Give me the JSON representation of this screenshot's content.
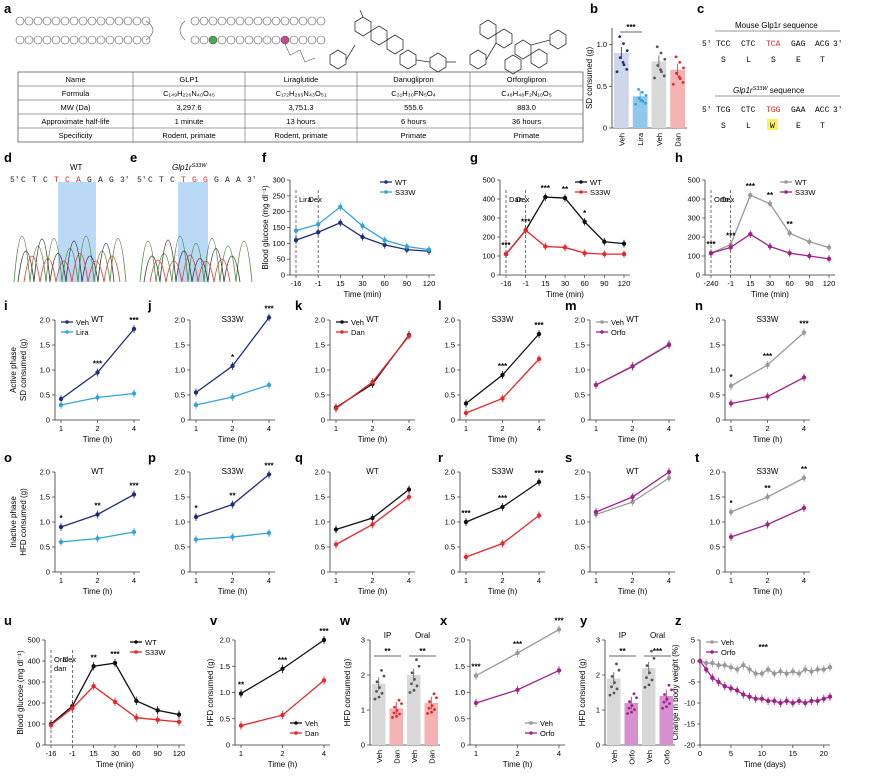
{
  "colors": {
    "wt": "#1f2e7a",
    "lira": "#34a3d8",
    "dan": "#e8262b",
    "danlight": "#f29a98",
    "orfo": "#a0218c",
    "veh_gray": "#999999",
    "black": "#111111",
    "bar_lira": "#8fc8ec",
    "bar_dan": "#f4b2b2",
    "bar_veh_b": "#cfd6ea",
    "bar_veh_gray": "#d8d8d8",
    "bar_orfo": "#d68fcf",
    "seq_highlight": "#a9d0f5",
    "w_highlight": "#ffef5a"
  },
  "panel_letters": {
    "a": "a",
    "b": "b",
    "c": "c",
    "d": "d",
    "e": "e",
    "f": "f",
    "g": "g",
    "h": "h",
    "i": "i",
    "j": "j",
    "k": "k",
    "l": "l",
    "m": "m",
    "n": "n",
    "o": "o",
    "p": "p",
    "q": "q",
    "r": "r",
    "s": "s",
    "t": "t",
    "u": "u",
    "v": "v",
    "w": "w",
    "x": "x",
    "y": "y",
    "z": "z"
  },
  "table": {
    "headers": [
      "Name",
      "GLP1",
      "Liraglutide",
      "Danuglipron",
      "Orforglipron"
    ],
    "rows": [
      [
        "Formula",
        "C₁₄₉H₂₂₆N₄₀O₄₅",
        "C₁₇₂H₂₆₅N₄₃O₅₁",
        "C₃₁H₃₀FN₅O₄",
        "C₄₈H₄₈F₂N₁₀O₅"
      ],
      [
        "MW (Da)",
        "3,297.6",
        "3,751.3",
        "555.6",
        "883.0"
      ],
      [
        "Approximate half-life",
        "1 minute",
        "13 hours",
        "6 hours",
        "36 hours"
      ],
      [
        "Specificity",
        "Rodent, primate",
        "Rodent, primate",
        "Primate",
        "Primate"
      ]
    ]
  },
  "panel_b": {
    "ylabel": "SD consumed (g)",
    "yticks": [
      "0",
      "0.5",
      "1.0"
    ],
    "categories": [
      "Veh",
      "Lira",
      "Veh",
      "Dan"
    ],
    "values": [
      0.9,
      0.38,
      0.8,
      0.7
    ],
    "stars": "***"
  },
  "panel_c": {
    "title1": "Mouse Glp1r sequence",
    "seq1_prefix": "5′",
    "seq1": [
      "TCC",
      "CTC",
      "TCA",
      "GAG",
      "ACG"
    ],
    "seq1_suffix": "3′",
    "aa1": [
      "S",
      "L",
      "S",
      "E",
      "T"
    ],
    "title2_pre": "Glp1r",
    "title2_sup": "S33W",
    "title2_post": " sequence",
    "seq2_prefix": "5′",
    "seq2": [
      "TCG",
      "CTC",
      "TGG",
      "GAA",
      "ACC"
    ],
    "seq2_suffix": "3′",
    "aa2": [
      "S",
      "L",
      "W",
      "E",
      "T"
    ]
  },
  "panel_d": {
    "title": "WT",
    "seq": [
      "5′",
      "C",
      "T",
      "C",
      "T",
      "C",
      "A",
      "G",
      "A",
      "G",
      "3′"
    ]
  },
  "panel_e": {
    "title_pre": "Glp1r",
    "title_sup": "S33W",
    "seq": [
      "5′",
      "C",
      "T",
      "C",
      "T",
      "G",
      "G",
      "G",
      "A",
      "A",
      "3′"
    ]
  },
  "glucose_ylabel": "Blood glucose (mg dl⁻¹)",
  "time_min_label": "Time (min)",
  "time_h_label": "Time (h)",
  "sd_label": "Active phase\nSD consumed (g)",
  "hfd_label": "Inactive phase\nHFD consumed (g)",
  "hfd_label2": "HFD consumed (g)",
  "chart_data": [
    {
      "id": "f",
      "type": "line",
      "ylabel": "Blood glucose (mg dl⁻¹)",
      "xlabel": "Time (min)",
      "x": [
        "-16",
        "-1",
        "15",
        "30",
        "60",
        "90",
        "120"
      ],
      "ylim": [
        0,
        300
      ],
      "yticks": [
        0,
        50,
        100,
        150,
        200,
        250,
        300
      ],
      "annotations": [
        "Lira",
        "Dex"
      ],
      "series": [
        {
          "name": "WT",
          "color": "#1f2e7a",
          "values": [
            110,
            135,
            165,
            120,
            95,
            80,
            75
          ]
        },
        {
          "name": "S33W",
          "color": "#34a3d8",
          "values": [
            140,
            160,
            215,
            155,
            110,
            90,
            80
          ]
        }
      ]
    },
    {
      "id": "g",
      "type": "line",
      "ylabel": "",
      "xlabel": "Time (min)",
      "x": [
        "-16",
        "-1",
        "15",
        "30",
        "60",
        "90",
        "120"
      ],
      "ylim": [
        0,
        500
      ],
      "yticks": [
        0,
        100,
        200,
        300,
        400,
        500
      ],
      "annotations": [
        "Dan",
        "Dex"
      ],
      "stars": [
        "***",
        "***",
        "***",
        "**",
        "*"
      ],
      "series": [
        {
          "name": "WT",
          "color": "#111111",
          "values": [
            110,
            235,
            410,
            405,
            280,
            175,
            165
          ]
        },
        {
          "name": "S33W",
          "color": "#e8262b",
          "values": [
            110,
            235,
            150,
            145,
            115,
            110,
            110
          ]
        }
      ]
    },
    {
      "id": "h",
      "type": "line",
      "ylabel": "",
      "xlabel": "Time (min)",
      "x": [
        "-240",
        "-1",
        "15",
        "30",
        "60",
        "90",
        "120"
      ],
      "ylim": [
        0,
        500
      ],
      "yticks": [
        0,
        100,
        200,
        300,
        400,
        500
      ],
      "annotations": [
        "Orfo",
        "Dex"
      ],
      "stars": [
        "***",
        "***",
        "***",
        "**",
        "**"
      ],
      "series": [
        {
          "name": "WT",
          "color": "#999999",
          "values": [
            115,
            160,
            420,
            375,
            220,
            175,
            145
          ]
        },
        {
          "name": "S33W",
          "color": "#a0218c",
          "values": [
            115,
            145,
            215,
            150,
            115,
            100,
            85
          ]
        }
      ]
    },
    {
      "id": "i",
      "type": "line",
      "title": "WT",
      "x": [
        "1",
        "2",
        "4"
      ],
      "ylim": [
        0,
        2.0
      ],
      "yticks": [
        "0",
        "0.5",
        "1.0",
        "1.5",
        "2.0"
      ],
      "stars": [
        "",
        "***",
        "***"
      ],
      "legend": [
        "Veh",
        "Lira"
      ],
      "series": [
        {
          "name": "Veh",
          "color": "#1f2e7a",
          "values": [
            0.42,
            0.95,
            1.82
          ]
        },
        {
          "name": "Lira",
          "color": "#34a3d8",
          "values": [
            0.3,
            0.45,
            0.53
          ]
        }
      ]
    },
    {
      "id": "j",
      "type": "line",
      "title": "S33W",
      "x": [
        "1",
        "2",
        "4"
      ],
      "ylim": [
        0,
        2.0
      ],
      "yticks": [
        "0",
        "0.5",
        "1.0",
        "1.5",
        "2.0"
      ],
      "stars": [
        "",
        "*",
        "***"
      ],
      "series": [
        {
          "name": "Veh",
          "color": "#1f2e7a",
          "values": [
            0.55,
            1.08,
            2.05
          ]
        },
        {
          "name": "Lira",
          "color": "#34a3d8",
          "values": [
            0.3,
            0.46,
            0.7
          ]
        }
      ]
    },
    {
      "id": "k",
      "type": "line",
      "title": "WT",
      "x": [
        "1",
        "2",
        "4"
      ],
      "ylim": [
        0,
        2.0
      ],
      "yticks": [
        "0",
        "0.5",
        "1.0",
        "1.5",
        "2.0"
      ],
      "stars": [
        "",
        "",
        ""
      ],
      "legend": [
        "Veh",
        "Dan"
      ],
      "series": [
        {
          "name": "Veh",
          "color": "#111111",
          "values": [
            0.25,
            0.72,
            1.7
          ]
        },
        {
          "name": "Dan",
          "color": "#e8262b",
          "values": [
            0.23,
            0.76,
            1.68
          ]
        }
      ]
    },
    {
      "id": "l",
      "type": "line",
      "title": "S33W",
      "x": [
        "1",
        "2",
        "4"
      ],
      "ylim": [
        0,
        2.0
      ],
      "yticks": [
        "0",
        "0.5",
        "1.0",
        "1.5",
        "2.0"
      ],
      "stars": [
        "",
        "***",
        "***"
      ],
      "series": [
        {
          "name": "Veh",
          "color": "#111111",
          "values": [
            0.33,
            0.9,
            1.72
          ]
        },
        {
          "name": "Dan",
          "color": "#e8262b",
          "values": [
            0.14,
            0.43,
            1.22
          ]
        }
      ]
    },
    {
      "id": "m",
      "type": "line",
      "title": "WT",
      "x": [
        "1",
        "2",
        "4"
      ],
      "ylim": [
        0,
        2.0
      ],
      "yticks": [
        "0",
        "0.5",
        "1.0",
        "1.5",
        "2.0"
      ],
      "stars": [
        "",
        "",
        ""
      ],
      "legend": [
        "Veh",
        "Orfo"
      ],
      "series": [
        {
          "name": "Veh",
          "color": "#999999",
          "values": [
            0.7,
            1.08,
            1.52
          ]
        },
        {
          "name": "Orfo",
          "color": "#a0218c",
          "values": [
            0.7,
            1.07,
            1.5
          ]
        }
      ]
    },
    {
      "id": "n",
      "type": "line",
      "title": "S33W",
      "x": [
        "1",
        "2",
        "4"
      ],
      "ylim": [
        0,
        2.0
      ],
      "yticks": [
        "0",
        "0.5",
        "1.0",
        "1.5",
        "2.0"
      ],
      "stars": [
        "*",
        "***",
        "***"
      ],
      "series": [
        {
          "name": "Veh",
          "color": "#999999",
          "values": [
            0.68,
            1.1,
            1.75
          ]
        },
        {
          "name": "Orfo",
          "color": "#a0218c",
          "values": [
            0.33,
            0.47,
            0.85
          ]
        }
      ]
    },
    {
      "id": "o",
      "type": "line",
      "title": "WT",
      "x": [
        "1",
        "2",
        "4"
      ],
      "ylim": [
        0,
        2.0
      ],
      "yticks": [
        "0",
        "0.5",
        "1.0",
        "1.5",
        "2.0"
      ],
      "stars": [
        "*",
        "**",
        "***"
      ],
      "series": [
        {
          "name": "Veh",
          "color": "#1f2e7a",
          "values": [
            0.9,
            1.15,
            1.55
          ]
        },
        {
          "name": "Lira",
          "color": "#34a3d8",
          "values": [
            0.6,
            0.67,
            0.8
          ]
        }
      ]
    },
    {
      "id": "p",
      "type": "line",
      "title": "S33W",
      "x": [
        "1",
        "2",
        "4"
      ],
      "ylim": [
        0,
        2.0
      ],
      "yticks": [
        "0",
        "0.5",
        "1.0",
        "1.5",
        "2.0"
      ],
      "stars": [
        "*",
        "**",
        "***"
      ],
      "series": [
        {
          "name": "Veh",
          "color": "#1f2e7a",
          "values": [
            1.1,
            1.35,
            1.95
          ]
        },
        {
          "name": "Lira",
          "color": "#34a3d8",
          "values": [
            0.65,
            0.7,
            0.78
          ]
        }
      ]
    },
    {
      "id": "q",
      "type": "line",
      "title": "WT",
      "x": [
        "1",
        "2",
        "4"
      ],
      "ylim": [
        0,
        2.0
      ],
      "yticks": [
        "0",
        "0.5",
        "1.0",
        "1.5",
        "2.0"
      ],
      "stars": [
        "",
        "",
        ""
      ],
      "series": [
        {
          "name": "Veh",
          "color": "#111111",
          "values": [
            0.85,
            1.08,
            1.65
          ]
        },
        {
          "name": "Dan",
          "color": "#e8262b",
          "values": [
            0.55,
            0.95,
            1.5
          ]
        }
      ]
    },
    {
      "id": "r",
      "type": "line",
      "title": "S33W",
      "x": [
        "1",
        "2",
        "4"
      ],
      "ylim": [
        0,
        2.0
      ],
      "yticks": [
        "0",
        "0.5",
        "1.0",
        "1.5",
        "2.0"
      ],
      "stars": [
        "***",
        "***",
        "***"
      ],
      "series": [
        {
          "name": "Veh",
          "color": "#111111",
          "values": [
            1.0,
            1.3,
            1.8
          ]
        },
        {
          "name": "Dan",
          "color": "#e8262b",
          "values": [
            0.3,
            0.57,
            1.13
          ]
        }
      ]
    },
    {
      "id": "s",
      "type": "line",
      "title": "WT",
      "x": [
        "1",
        "2",
        "4"
      ],
      "ylim": [
        0,
        2.0
      ],
      "yticks": [
        "0",
        "0.5",
        "1.0",
        "1.5",
        "2.0"
      ],
      "stars": [
        "",
        "",
        ""
      ],
      "series": [
        {
          "name": "Veh",
          "color": "#999999",
          "values": [
            1.15,
            1.4,
            1.88
          ]
        },
        {
          "name": "Orfo",
          "color": "#a0218c",
          "values": [
            1.2,
            1.5,
            2.0
          ]
        }
      ]
    },
    {
      "id": "t",
      "type": "line",
      "title": "S33W",
      "x": [
        "1",
        "2",
        "4"
      ],
      "ylim": [
        0,
        2.0
      ],
      "yticks": [
        "0",
        "0.5",
        "1.0",
        "1.5",
        "2.0"
      ],
      "stars": [
        "*",
        "**",
        "**"
      ],
      "series": [
        {
          "name": "Veh",
          "color": "#999999",
          "values": [
            1.2,
            1.5,
            1.88
          ]
        },
        {
          "name": "Orfo",
          "color": "#a0218c",
          "values": [
            0.7,
            0.95,
            1.28
          ]
        }
      ]
    },
    {
      "id": "u",
      "type": "line",
      "ylabel": "Blood glucose (mg dl⁻¹)",
      "xlabel": "Time (min)",
      "x": [
        "-16",
        "-1",
        "15",
        "30",
        "60",
        "90",
        "120"
      ],
      "ylim": [
        0,
        500
      ],
      "yticks": [
        0,
        100,
        200,
        300,
        400,
        500
      ],
      "annotations": [
        "Oral\ndan",
        "Dex"
      ],
      "stars": [
        "",
        "",
        "**",
        "***",
        "",
        "",
        ""
      ],
      "series": [
        {
          "name": "WT",
          "color": "#111111",
          "values": [
            100,
            185,
            375,
            390,
            210,
            165,
            145
          ]
        },
        {
          "name": "S33W",
          "color": "#e8262b",
          "values": [
            95,
            175,
            280,
            205,
            130,
            120,
            110
          ]
        }
      ]
    },
    {
      "id": "v",
      "type": "line",
      "ylabel": "HFD consumed (g)",
      "x": [
        "1",
        "2",
        "4"
      ],
      "ylim": [
        0,
        2.0
      ],
      "yticks": [
        "0",
        "0.5",
        "1.0",
        "1.5",
        "2.0"
      ],
      "stars": [
        "**",
        "***",
        "***"
      ],
      "legend": [
        "Veh",
        "Dan"
      ],
      "series": [
        {
          "name": "Veh",
          "color": "#111111",
          "values": [
            0.98,
            1.45,
            2.0
          ]
        },
        {
          "name": "Dan",
          "color": "#e8262b",
          "values": [
            0.37,
            0.57,
            1.23
          ]
        }
      ]
    },
    {
      "id": "w",
      "type": "bar",
      "ylabel": "HFD consumed (g)",
      "ylim": [
        0,
        3
      ],
      "yticks": [
        "0",
        "1",
        "2",
        "3"
      ],
      "groups": [
        "IP",
        "Oral"
      ],
      "categories": [
        "Veh",
        "Dan",
        "Veh",
        "Dan"
      ],
      "values": [
        1.75,
        1.05,
        2.0,
        1.2
      ],
      "stars": [
        "**",
        "**"
      ]
    },
    {
      "id": "x",
      "type": "line",
      "x": [
        "1",
        "2",
        "4"
      ],
      "ylim": [
        0,
        2.0
      ],
      "yticks": [
        "0",
        "0.5",
        "1.0",
        "1.5",
        "2.0"
      ],
      "stars": [
        "***",
        "***",
        "***"
      ],
      "legend": [
        "Veh",
        "Orfo"
      ],
      "series": [
        {
          "name": "Veh",
          "color": "#999999",
          "values": [
            1.32,
            1.75,
            2.2
          ]
        },
        {
          "name": "Orfo",
          "color": "#a0218c",
          "values": [
            0.8,
            1.05,
            1.42
          ]
        }
      ]
    },
    {
      "id": "y",
      "type": "bar",
      "ylabel": "HFD consumed (g)",
      "ylim": [
        0,
        3
      ],
      "yticks": [
        "0",
        "1",
        "2",
        "3"
      ],
      "groups": [
        "IP",
        "Oral"
      ],
      "categories": [
        "Veh",
        "Orfo",
        "Veh",
        "Orfo"
      ],
      "values": [
        1.9,
        1.2,
        2.2,
        1.4
      ],
      "stars": [
        "**",
        "***"
      ]
    },
    {
      "id": "z",
      "type": "line",
      "ylabel": "Change in body weight (%)",
      "xlabel": "Time (days)",
      "x": [
        0,
        1,
        2,
        3,
        4,
        5,
        6,
        7,
        8,
        9,
        10,
        11,
        12,
        13,
        14,
        15,
        16,
        17,
        18,
        19,
        20,
        21
      ],
      "ylim": [
        -20,
        5
      ],
      "yticks": [
        -20,
        -15,
        -10,
        -5,
        0,
        5
      ],
      "xticks": [
        0,
        5,
        10,
        15,
        20
      ],
      "stars": "***",
      "legend": [
        "Veh",
        "Orfo"
      ],
      "series": [
        {
          "name": "Veh",
          "color": "#999999",
          "values": [
            0,
            -0.5,
            -0.5,
            -1,
            -1,
            -1.5,
            -2,
            -1,
            -2,
            -3,
            -3,
            -2,
            -3,
            -2.5,
            -3,
            -2.5,
            -3,
            -2,
            -2.5,
            -2,
            -2,
            -1.5
          ]
        },
        {
          "name": "Orfo",
          "color": "#a0218c",
          "values": [
            0,
            -2,
            -4,
            -5,
            -6,
            -6.5,
            -7,
            -8,
            -8.5,
            -9,
            -9,
            -9.5,
            -9.5,
            -10,
            -9.5,
            -10,
            -9.5,
            -10,
            -9.5,
            -9.5,
            -9,
            -8.5
          ]
        }
      ]
    }
  ]
}
